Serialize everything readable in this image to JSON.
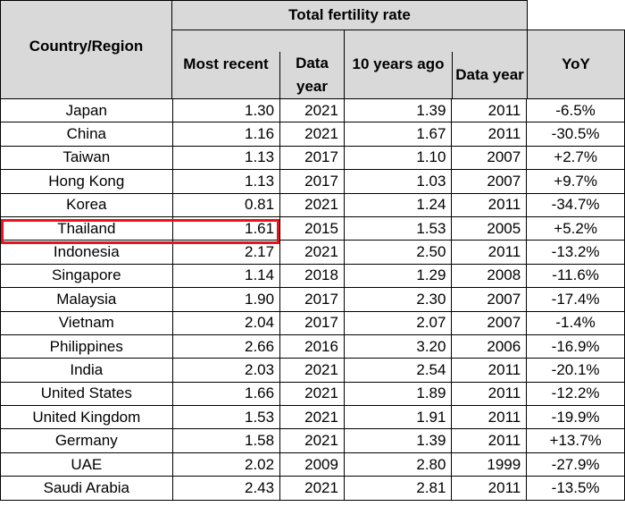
{
  "header": {
    "country": "Country/Region",
    "group": "Total fertility rate",
    "most_recent": "Most recent",
    "data_year": "Data year",
    "ten_years_ago": "10 years ago",
    "data_year2": "Data year",
    "yoy": "YoY"
  },
  "highlight_color": "#e8141b",
  "rows": [
    {
      "country": "Japan",
      "recent": "1.30",
      "year": "2021",
      "ago": "1.39",
      "ago_year": "2011",
      "yoy": "-6.5%"
    },
    {
      "country": "China",
      "recent": "1.16",
      "year": "2021",
      "ago": "1.67",
      "ago_year": "2011",
      "yoy": "-30.5%"
    },
    {
      "country": "Taiwan",
      "recent": "1.13",
      "year": "2017",
      "ago": "1.10",
      "ago_year": "2007",
      "yoy": "+2.7%"
    },
    {
      "country": "Hong Kong",
      "recent": "1.13",
      "year": "2017",
      "ago": "1.03",
      "ago_year": "2007",
      "yoy": "+9.7%"
    },
    {
      "country": "Korea",
      "recent": "0.81",
      "year": "2021",
      "ago": "1.24",
      "ago_year": "2011",
      "yoy": "-34.7%"
    },
    {
      "country": "Thailand",
      "recent": "1.61",
      "year": "2015",
      "ago": "1.53",
      "ago_year": "2005",
      "yoy": "+5.2%",
      "highlighted": true
    },
    {
      "country": "Indonesia",
      "recent": "2.17",
      "year": "2021",
      "ago": "2.50",
      "ago_year": "2011",
      "yoy": "-13.2%"
    },
    {
      "country": "Singapore",
      "recent": "1.14",
      "year": "2018",
      "ago": "1.29",
      "ago_year": "2008",
      "yoy": "-11.6%"
    },
    {
      "country": "Malaysia",
      "recent": "1.90",
      "year": "2017",
      "ago": "2.30",
      "ago_year": "2007",
      "yoy": "-17.4%"
    },
    {
      "country": "Vietnam",
      "recent": "2.04",
      "year": "2017",
      "ago": "2.07",
      "ago_year": "2007",
      "yoy": "-1.4%"
    },
    {
      "country": "Philippines",
      "recent": "2.66",
      "year": "2016",
      "ago": "3.20",
      "ago_year": "2006",
      "yoy": "-16.9%"
    },
    {
      "country": "India",
      "recent": "2.03",
      "year": "2021",
      "ago": "2.54",
      "ago_year": "2011",
      "yoy": "-20.1%"
    },
    {
      "country": "United States",
      "recent": "1.66",
      "year": "2021",
      "ago": "1.89",
      "ago_year": "2011",
      "yoy": "-12.2%"
    },
    {
      "country": "United Kingdom",
      "recent": "1.53",
      "year": "2021",
      "ago": "1.91",
      "ago_year": "2011",
      "yoy": "-19.9%"
    },
    {
      "country": "Germany",
      "recent": "1.58",
      "year": "2021",
      "ago": "1.39",
      "ago_year": "2011",
      "yoy": "+13.7%"
    },
    {
      "country": "UAE",
      "recent": "2.02",
      "year": "2009",
      "ago": "2.80",
      "ago_year": "1999",
      "yoy": "-27.9%"
    },
    {
      "country": "Saudi Arabia",
      "recent": "2.43",
      "year": "2021",
      "ago": "2.81",
      "ago_year": "2011",
      "yoy": "-13.5%"
    }
  ]
}
